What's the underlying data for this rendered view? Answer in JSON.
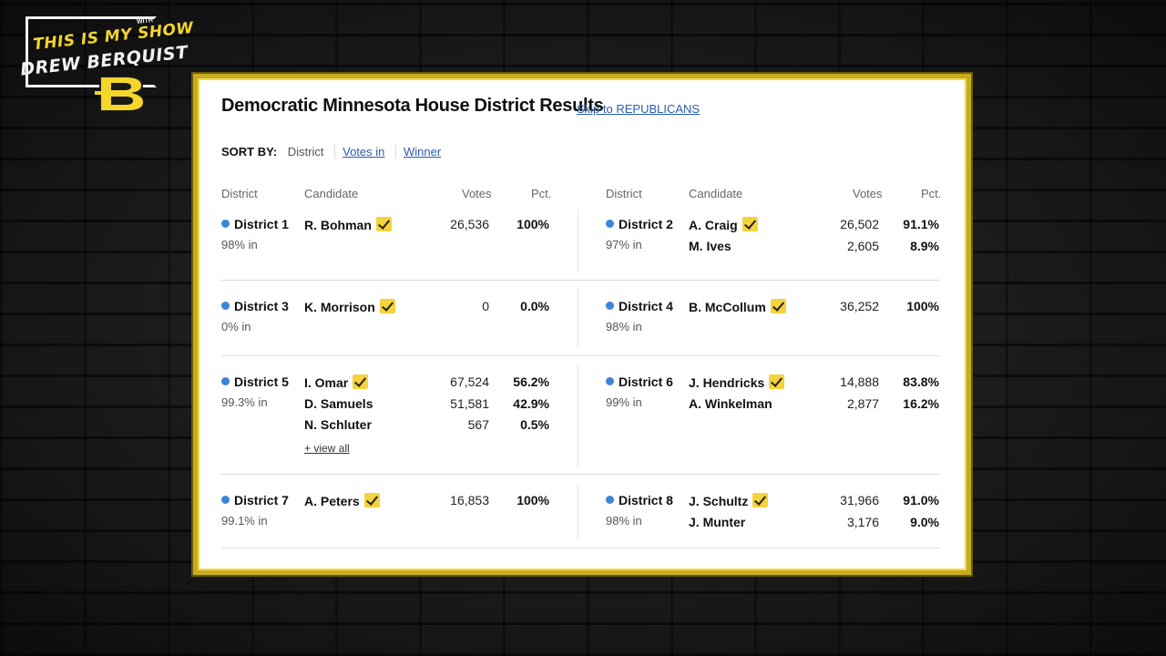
{
  "logo": {
    "line1": "THIS IS MY SHOW",
    "with": "WITH",
    "line2": "DREW BERQUIST"
  },
  "title": "Democratic Minnesota House District Results",
  "skip_link": "Skip to REPUBLICANS",
  "sort": {
    "label": "SORT BY:",
    "options": [
      "District",
      "Votes in",
      "Winner"
    ]
  },
  "columns": {
    "district": "District",
    "candidate": "Candidate",
    "votes": "Votes",
    "pct": "Pct."
  },
  "view_all": "+ view all",
  "colors": {
    "frame": "#c9ac1e",
    "dot": "#3a86d9",
    "check": "#f5d33b",
    "link": "#2a5db0"
  },
  "districts": [
    {
      "name": "District 1",
      "reporting": "98% in",
      "candidates": [
        {
          "name": "R. Bohman",
          "winner": true,
          "votes": "26,536",
          "pct": "100%"
        }
      ]
    },
    {
      "name": "District 2",
      "reporting": "97% in",
      "candidates": [
        {
          "name": "A. Craig",
          "winner": true,
          "votes": "26,502",
          "pct": "91.1%"
        },
        {
          "name": "M. Ives",
          "winner": false,
          "votes": "2,605",
          "pct": "8.9%"
        }
      ]
    },
    {
      "name": "District 3",
      "reporting": "0% in",
      "candidates": [
        {
          "name": "K. Morrison",
          "winner": true,
          "votes": "0",
          "pct": "0.0%"
        }
      ]
    },
    {
      "name": "District 4",
      "reporting": "98% in",
      "candidates": [
        {
          "name": "B. McCollum",
          "winner": true,
          "votes": "36,252",
          "pct": "100%"
        }
      ]
    },
    {
      "name": "District 5",
      "reporting": "99.3% in",
      "candidates": [
        {
          "name": "I. Omar",
          "winner": true,
          "votes": "67,524",
          "pct": "56.2%"
        },
        {
          "name": "D. Samuels",
          "winner": false,
          "votes": "51,581",
          "pct": "42.9%"
        },
        {
          "name": "N. Schluter",
          "winner": false,
          "votes": "567",
          "pct": "0.5%"
        }
      ]
    },
    {
      "name": "District 6",
      "reporting": "99% in",
      "candidates": [
        {
          "name": "J. Hendricks",
          "winner": true,
          "votes": "14,888",
          "pct": "83.8%"
        },
        {
          "name": "A. Winkelman",
          "winner": false,
          "votes": "2,877",
          "pct": "16.2%"
        }
      ]
    },
    {
      "name": "District 7",
      "reporting": "99.1% in",
      "candidates": [
        {
          "name": "A. Peters",
          "winner": true,
          "votes": "16,853",
          "pct": "100%"
        }
      ]
    },
    {
      "name": "District 8",
      "reporting": "98% in",
      "candidates": [
        {
          "name": "J. Schultz",
          "winner": true,
          "votes": "31,966",
          "pct": "91.0%"
        },
        {
          "name": "J. Munter",
          "winner": false,
          "votes": "3,176",
          "pct": "9.0%"
        }
      ]
    }
  ]
}
